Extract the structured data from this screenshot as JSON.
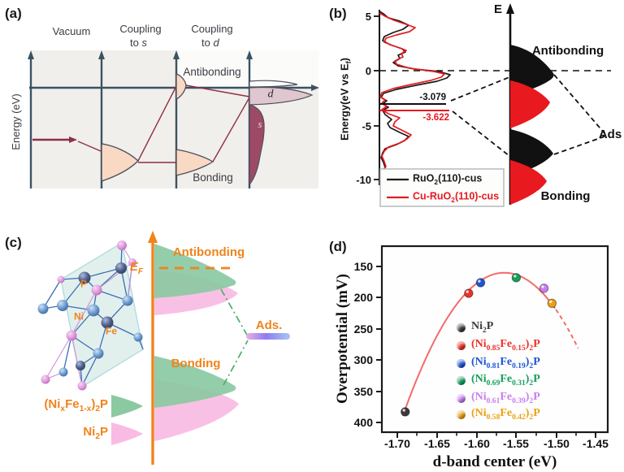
{
  "panel_a": {
    "tag": "(a)",
    "y_axis_label": "Energy (eV)",
    "col1": "Vacuum",
    "col2_line1": "Coupling",
    "col2_line2_parts": [
      [
        "t",
        "to "
      ],
      [
        "i",
        "s"
      ]
    ],
    "col3_line1": "Coupling",
    "col3_line2_parts": [
      [
        "t",
        "to "
      ],
      [
        "i",
        "d"
      ]
    ],
    "antibonding": "Antibonding",
    "bonding": "Bonding",
    "d_band_label": "d",
    "s_band_label": "s"
  },
  "panel_b": {
    "tag": "(b)",
    "y_axis_label_parts": [
      [
        "t",
        "Energy(eV vs E"
      ],
      [
        "s",
        "f"
      ],
      [
        "t",
        ")"
      ]
    ],
    "e_axis_label": "E",
    "antibonding": "Antibonding",
    "bonding": "Bonding",
    "ads": "Ads",
    "dband_black": {
      "value": "-3.079",
      "energy": -3.079
    },
    "dband_red": {
      "value": "-3.622",
      "energy": -3.622
    },
    "yticks": [
      {
        "label": "5",
        "value": 5
      },
      {
        "label": "0",
        "value": 0
      },
      {
        "label": "-5",
        "value": -5
      },
      {
        "label": "-10",
        "value": -10
      }
    ],
    "legend": [
      {
        "parts": [
          [
            "t",
            "RuO"
          ],
          [
            "s",
            "2"
          ],
          [
            "t",
            "(110)-cus"
          ]
        ],
        "color": "#1a1a1a"
      },
      {
        "parts": [
          [
            "t",
            "Cu-RuO"
          ],
          [
            "s",
            "2"
          ],
          [
            "t",
            "(110)-cus"
          ]
        ],
        "color": "#e8191f"
      }
    ]
  },
  "panel_c": {
    "tag": "(c)",
    "ef_parts": [
      [
        "i",
        "E"
      ],
      [
        "s",
        "F"
      ]
    ],
    "antibonding": "Antibonding",
    "bonding": "Bonding",
    "ads": "Ads.",
    "atom_labels": {
      "p": "P",
      "ni": "Ni",
      "fe": "Fe"
    },
    "legend": [
      {
        "parts": [
          [
            "t",
            "(Ni"
          ],
          [
            "s",
            "x"
          ],
          [
            "t",
            "Fe"
          ],
          [
            "s",
            "1-x"
          ],
          [
            "t",
            ")"
          ],
          [
            "s",
            "2"
          ],
          [
            "t",
            "P"
          ]
        ],
        "swatch": "green"
      },
      {
        "parts": [
          [
            "t",
            "Ni"
          ],
          [
            "s",
            "2"
          ],
          [
            "t",
            "P"
          ]
        ],
        "swatch": "pink"
      }
    ]
  },
  "panel_d": {
    "tag": "(d)"
  },
  "colors": {
    "panel_a": {
      "axis": "#3a5362",
      "peak_fill": "#f9d9c4",
      "maroon": "#8e2f49",
      "d_fill": "#dfc6cf",
      "s_fill": "#9c4a66",
      "background": "#f0efeb"
    },
    "panel_b": {
      "dos_black": "#1a1a1a",
      "dos_red": "#e8191f"
    },
    "panel_c": {
      "orange": "#f0831c",
      "green_series": "#8bc9a2",
      "pink_series": "#f9bbe3",
      "p_atom": "#e09ade",
      "ni_atom": "#6b9ad0",
      "fe_atom": "#4d5f88"
    },
    "panel_d": {
      "curve": "#f56a6a"
    }
  },
  "chart_data": [
    {
      "panel": "b",
      "type": "line",
      "description": "Projected density of states (horizontal DOS vs vertical energy) with d-band centers, plus schematic bonding/antibonding adsorbate level splitting",
      "ylabel": "Energy(eV vs Ef)",
      "ylim": [
        -10,
        5
      ],
      "yticks": [
        5,
        0,
        -5,
        -10
      ],
      "fermi_level": 0,
      "series": [
        {
          "name": "RuO2(110)-cus",
          "color": "#1a1a1a",
          "d_band_center": -3.079
        },
        {
          "name": "Cu-RuO2(110)-cus",
          "color": "#e8191f",
          "d_band_center": -3.622
        }
      ],
      "annotations": [
        "E",
        "Antibonding",
        "Bonding",
        "Ads"
      ]
    },
    {
      "panel": "d",
      "type": "scatter",
      "xlabel": "d-band center (eV)",
      "ylabel": "Overpotential (mV)",
      "xlim": [
        -1.72,
        -1.43
      ],
      "ylim": [
        415,
        117
      ],
      "y_axis_inverted": true,
      "xticks": [
        "-1.70",
        "-1.65",
        "-1.60",
        "-1.55",
        "-1.50",
        "-1.45"
      ],
      "yticks": [
        "150",
        "200",
        "250",
        "300",
        "350",
        "400"
      ],
      "series": [
        {
          "name_parts": [
            [
              "t",
              "Ni"
            ],
            [
              "s",
              "2"
            ],
            [
              "t",
              "P"
            ]
          ],
          "color": "#3a3a3a",
          "x": -1.69,
          "y": 383
        },
        {
          "name_parts": [
            [
              "t",
              "(Ni"
            ],
            [
              "s",
              "0.85"
            ],
            [
              "t",
              "Fe"
            ],
            [
              "s",
              "0.15"
            ],
            [
              "t",
              ")"
            ],
            [
              "s",
              "2"
            ],
            [
              "t",
              "P"
            ]
          ],
          "color": "#ed3128",
          "x": -1.61,
          "y": 193
        },
        {
          "name_parts": [
            [
              "t",
              "(Ni"
            ],
            [
              "s",
              "0.81"
            ],
            [
              "t",
              "Fe"
            ],
            [
              "s",
              "0.19"
            ],
            [
              "t",
              ")"
            ],
            [
              "s",
              "2"
            ],
            [
              "t",
              "P"
            ]
          ],
          "color": "#1d55d8",
          "x": -1.595,
          "y": 176
        },
        {
          "name_parts": [
            [
              "t",
              "(Ni"
            ],
            [
              "s",
              "0.69"
            ],
            [
              "t",
              "Fe"
            ],
            [
              "s",
              "0.31"
            ],
            [
              "t",
              ")"
            ],
            [
              "s",
              "2"
            ],
            [
              "t",
              "P"
            ]
          ],
          "color": "#14a05a",
          "x": -1.55,
          "y": 168
        },
        {
          "name_parts": [
            [
              "t",
              "(Ni"
            ],
            [
              "s",
              "0.61"
            ],
            [
              "t",
              "Fe"
            ],
            [
              "s",
              "0.39"
            ],
            [
              "t",
              ")"
            ],
            [
              "s",
              "2"
            ],
            [
              "t",
              "P"
            ]
          ],
          "color": "#c87ef0",
          "x": -1.515,
          "y": 185
        },
        {
          "name_parts": [
            [
              "t",
              "(Ni"
            ],
            [
              "s",
              "0.58"
            ],
            [
              "t",
              "Fe"
            ],
            [
              "s",
              "0.42"
            ],
            [
              "t",
              ")"
            ],
            [
              "s",
              "2"
            ],
            [
              "t",
              "P"
            ]
          ],
          "color": "#eda012",
          "x": -1.505,
          "y": 209
        }
      ],
      "fit_curve": {
        "type": "parabola",
        "vertex_x": -1.565,
        "vertex_y": 160,
        "k": 14000,
        "solid_x_range": [
          -1.693,
          -1.5
        ],
        "dashed_x_range": [
          -1.5,
          -1.472
        ],
        "color": "#f56a6a"
      }
    }
  ]
}
